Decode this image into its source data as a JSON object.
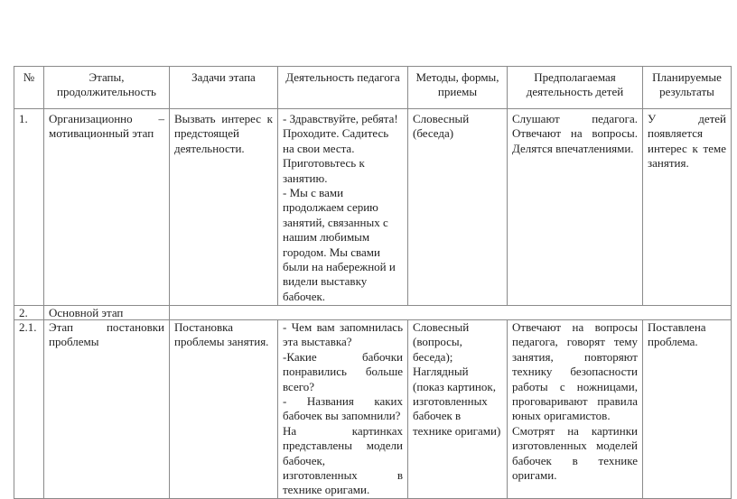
{
  "headers": [
    "№",
    "Этапы, продолжительность",
    "Задачи этапа",
    "Деятельность педагога",
    "Методы, формы, приемы",
    "Предполагаемая деятельность детей",
    "Планируемые результаты"
  ],
  "rows": [
    {
      "num": "1.",
      "stage": "Организационно – мотивационный этап",
      "tasks": "Вызвать интерес к предстоящей деятельности.",
      "teacher": [
        "- Здравствуйте, ребята! Проходите. Садитесь на свои места.",
        "Приготовьтесь к занятию.",
        "- Мы с вами продолжаем серию занятий, связанных с нашим любимым городом. Мы свами были на набережной и видели выставку бабочек."
      ],
      "methods": "Словесный (беседа)",
      "children": "Слушают педагога. Отвечают на вопросы. Делятся впечатлениями.",
      "results": "У детей появляется интерес к теме занятия."
    },
    {
      "num": "2.",
      "stage": "Основной этап"
    },
    {
      "num": "2.1.",
      "stage": "Этап постановки проблемы",
      "tasks": "Постановка проблемы занятия.",
      "teacher": [
        "- Чем вам запомнилась эта выставка?",
        "-Какие бабочки понравились больше всего?",
        "- Названия каких бабочек вы запомнили?",
        "На картинках представлены модели бабочек, изготовленных в технике оригами."
      ],
      "methods": "Словесный (вопросы, беседа); Наглядный (показ картинок, изготовленных бабочек в технике оригами)",
      "children": [
        "Отвечают на вопросы педагога, говорят тему занятия, повторяют технику безопасности работы с ножницами, проговаривают правила юных оригамистов.",
        "Смотрят на картинки изготовленных моделей бабочек в технике оригами."
      ],
      "results": "Поставлена проблема."
    }
  ]
}
